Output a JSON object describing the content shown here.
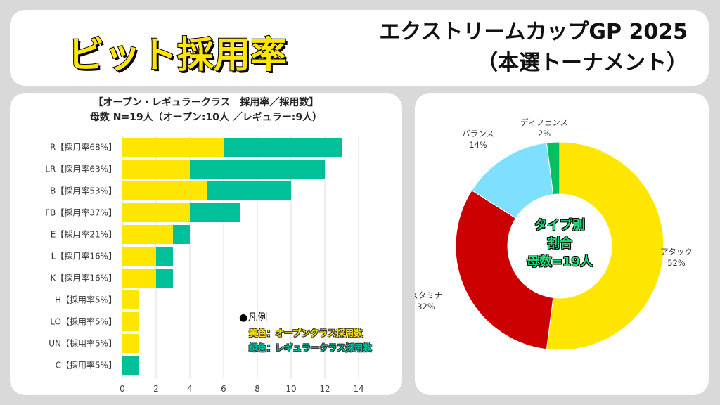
{
  "header": {
    "title": "ビット採用率",
    "subtitle_line1": "エクストリームカップGP 2025",
    "subtitle_line2": "（本選トーナメント）"
  },
  "chart_data": [
    {
      "type": "bar",
      "orientation": "horizontal",
      "stacked": true,
      "title_line1": "【オープン・レギュラークラス　採用率／採用数】",
      "title_line2": "母数 N=19人（オープン:10人 ／レギュラー:9人）",
      "categories": [
        "R【採用率68%】",
        "LR【採用率63%】",
        "B【採用率53%】",
        "FB【採用率37%】",
        "E【採用率21%】",
        "L【採用率16%】",
        "K【採用率16%】",
        "H【採用率5%】",
        "LO【採用率5%】",
        "UN【採用率5%】",
        "C【採用率5%】"
      ],
      "series": [
        {
          "name": "黄色：オープンクラス採用数",
          "color": "#ffe600",
          "values": [
            6,
            4,
            5,
            4,
            3,
            2,
            2,
            1,
            1,
            1,
            0
          ]
        },
        {
          "name": "緑色：レギュラークラス採用数",
          "color": "#00c09a",
          "values": [
            7,
            8,
            5,
            3,
            1,
            1,
            1,
            0,
            0,
            0,
            1
          ]
        }
      ],
      "xlim": [
        0,
        14
      ],
      "xticks": [
        0,
        2,
        4,
        6,
        8,
        10,
        12,
        14
      ],
      "grid": true,
      "legend_title": "●凡例",
      "legend_position": "bottom-right"
    },
    {
      "type": "pie",
      "donut": true,
      "center_text": [
        "タイプ別",
        "割合",
        "母数=19人"
      ],
      "slices": [
        {
          "label": "アタック",
          "value": 52,
          "pct": "52%",
          "color": "#ffe600"
        },
        {
          "label": "スタミナ",
          "value": 32,
          "pct": "32%",
          "color": "#cc0000"
        },
        {
          "label": "バランス",
          "value": 14,
          "pct": "14%",
          "color": "#7fdfff"
        },
        {
          "label": "ディフェンス",
          "value": 2,
          "pct": "2%",
          "color": "#00c060"
        }
      ]
    }
  ]
}
